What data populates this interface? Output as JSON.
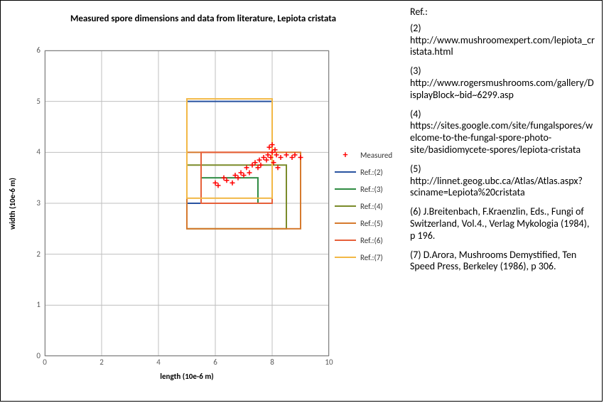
{
  "chart": {
    "type": "scatter-with-rects",
    "title": "Measured spore dimensions and data from literature, Lepiota cristata",
    "xlabel": "length (10e-6 m)",
    "ylabel": "width (10e-6 m)",
    "xlim": [
      0,
      10
    ],
    "ylim": [
      0,
      6
    ],
    "xtick_step": 2,
    "ytick_step": 1,
    "grid_color": "#bfbfbf",
    "axis_color": "#808080",
    "background_color": "#ffffff",
    "tick_fontsize": 11,
    "tick_color": "#595959",
    "title_fontsize": 13,
    "label_fontsize": 11,
    "measured_color": "#ff0000",
    "measured_marker": "plus",
    "measured": [
      [
        6.0,
        3.4
      ],
      [
        6.1,
        3.35
      ],
      [
        6.3,
        3.5
      ],
      [
        6.4,
        3.45
      ],
      [
        6.6,
        3.4
      ],
      [
        6.7,
        3.55
      ],
      [
        6.8,
        3.5
      ],
      [
        6.9,
        3.6
      ],
      [
        7.0,
        3.55
      ],
      [
        7.1,
        3.7
      ],
      [
        7.2,
        3.6
      ],
      [
        7.3,
        3.75
      ],
      [
        7.4,
        3.8
      ],
      [
        7.5,
        3.7
      ],
      [
        7.55,
        3.85
      ],
      [
        7.6,
        3.75
      ],
      [
        7.7,
        3.9
      ],
      [
        7.8,
        3.85
      ],
      [
        7.85,
        3.95
      ],
      [
        7.9,
        4.1
      ],
      [
        7.95,
        3.9
      ],
      [
        8.0,
        4.0
      ],
      [
        8.0,
        4.15
      ],
      [
        8.05,
        3.8
      ],
      [
        8.1,
        4.05
      ],
      [
        8.15,
        3.95
      ],
      [
        8.2,
        3.7
      ],
      [
        8.3,
        3.9
      ],
      [
        8.5,
        3.95
      ],
      [
        8.7,
        3.9
      ],
      [
        8.8,
        3.95
      ],
      [
        9.0,
        3.9
      ]
    ],
    "refs": [
      {
        "key": "2",
        "xmin": 5.0,
        "xmax": 8.0,
        "ymin": 3.0,
        "ymax": 5.0,
        "color": "#2953a0",
        "width": 2
      },
      {
        "key": "3",
        "xmin": 5.5,
        "xmax": 7.5,
        "ymin": 3.0,
        "ymax": 3.5,
        "color": "#2f8b43",
        "width": 2
      },
      {
        "key": "4",
        "xmin": 5.0,
        "xmax": 8.5,
        "ymin": 2.5,
        "ymax": 3.75,
        "color": "#7a8b2a",
        "width": 2
      },
      {
        "key": "5",
        "xmin": 5.0,
        "xmax": 9.0,
        "ymin": 2.5,
        "ymax": 4.0,
        "color": "#d67a2e",
        "width": 2
      },
      {
        "key": "6",
        "xmin": 5.5,
        "xmax": 8.0,
        "ymin": 3.0,
        "ymax": 4.0,
        "color": "#e6603a",
        "width": 2
      },
      {
        "key": "7",
        "xmin": 5.0,
        "xmax": 8.0,
        "ymin": 3.1,
        "ymax": 5.05,
        "color": "#f2b846",
        "width": 2
      }
    ],
    "legend": {
      "measured_label": "Measured",
      "ref_prefix": "Ref.:",
      "items": [
        "(2)",
        "(3)",
        "(4)",
        "(5)",
        "(6)",
        "(7)"
      ]
    }
  },
  "references": {
    "heading": "Ref.:",
    "items": [
      {
        "key": "(2)",
        "text": "http://www.mushroomexpert.com/lepiota_cristata.html"
      },
      {
        "key": "(3)",
        "text": "http://www.rogersmushrooms.com/gallery/DisplayBlock~bid~6299.asp"
      },
      {
        "key": "(4)",
        "text": "https://sites.google.com/site/fungalspores/welcome-to-the-fungal-spore-photo-site/basidiomycete-spores/lepiota-cristata"
      },
      {
        "key": "(5)",
        "text": "http://linnet.geog.ubc.ca/Atlas/Atlas.aspx?sciname=Lepiota%20cristata"
      },
      {
        "key": "(6)",
        "text": "J.Breitenbach, F.Kraenzlin, Eds., Fungi of Switzerland, Vol.4., Verlag Mykologia (1984), p 196."
      },
      {
        "key": "(7)",
        "text": "D.Arora, Mushrooms Demystified, Ten Speed Press, Berkeley (1986), p 306."
      }
    ]
  }
}
